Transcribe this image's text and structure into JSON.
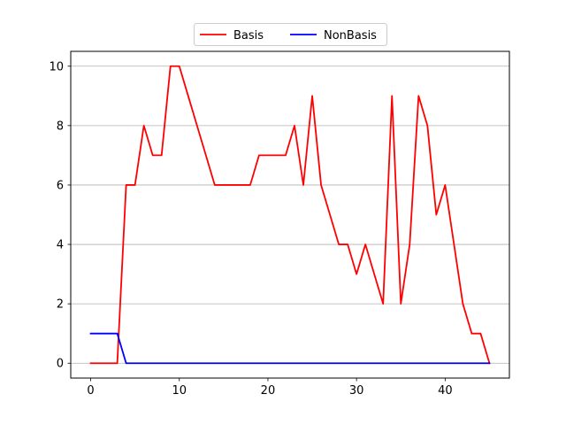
{
  "chart_data": {
    "type": "line",
    "title": "",
    "xlabel": "",
    "ylabel": "",
    "xlim": [
      -2.25,
      47.25
    ],
    "ylim": [
      -0.5,
      10.5
    ],
    "xticks": [
      0,
      10,
      20,
      30,
      40
    ],
    "yticks": [
      0,
      2,
      4,
      6,
      8,
      10
    ],
    "grid": "horizontal",
    "legend_placement": "top-center",
    "series": [
      {
        "name": "Basis",
        "color": "#ff0000",
        "x": [
          0,
          1,
          2,
          3,
          4,
          5,
          6,
          7,
          8,
          9,
          10,
          11,
          12,
          13,
          14,
          15,
          16,
          17,
          18,
          19,
          20,
          21,
          22,
          23,
          24,
          25,
          26,
          27,
          28,
          29,
          30,
          31,
          32,
          33,
          34,
          35,
          36,
          37,
          38,
          39,
          40,
          41,
          42,
          43,
          44,
          45
        ],
        "y": [
          0,
          0,
          0,
          0,
          6,
          6,
          8,
          7,
          7,
          10,
          10,
          9,
          8,
          7,
          6,
          6,
          6,
          6,
          6,
          7,
          7,
          7,
          7,
          8,
          6,
          9,
          6,
          5,
          4,
          4,
          3,
          4,
          3,
          2,
          9,
          2,
          4,
          9,
          8,
          5,
          6,
          4,
          2,
          1,
          1,
          0
        ]
      },
      {
        "name": "NonBasis",
        "color": "#0000ff",
        "x": [
          0,
          1,
          2,
          3,
          4,
          5,
          6,
          7,
          8,
          9,
          10,
          11,
          12,
          13,
          14,
          15,
          16,
          17,
          18,
          19,
          20,
          21,
          22,
          23,
          24,
          25,
          26,
          27,
          28,
          29,
          30,
          31,
          32,
          33,
          34,
          35,
          36,
          37,
          38,
          39,
          40,
          41,
          42,
          43,
          44,
          45
        ],
        "y": [
          1,
          1,
          1,
          1,
          0,
          0,
          0,
          0,
          0,
          0,
          0,
          0,
          0,
          0,
          0,
          0,
          0,
          0,
          0,
          0,
          0,
          0,
          0,
          0,
          0,
          0,
          0,
          0,
          0,
          0,
          0,
          0,
          0,
          0,
          0,
          0,
          0,
          0,
          0,
          0,
          0,
          0,
          0,
          0,
          0,
          0
        ]
      }
    ]
  }
}
